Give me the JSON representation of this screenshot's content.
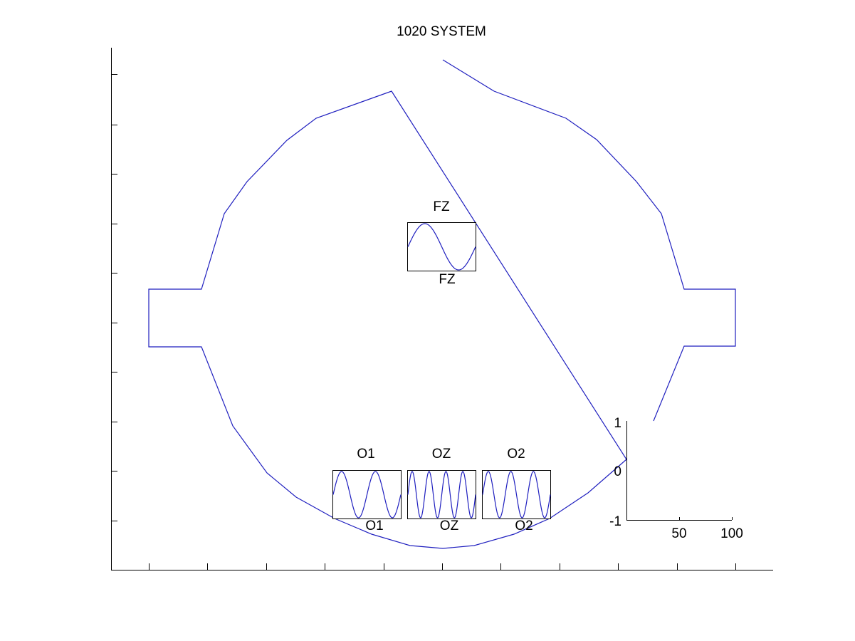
{
  "figure": {
    "title": "1020 SYSTEM",
    "outline_color": "#1f1fbf",
    "axis_color": "#000000",
    "background": "#ffffff"
  },
  "channels": [
    {
      "id": "fz",
      "label_top": "FZ",
      "label_bottom": "FZ",
      "cycles": 1
    },
    {
      "id": "o1",
      "label_top": "O1",
      "label_bottom": "O1",
      "cycles": 2
    },
    {
      "id": "oz",
      "label_top": "OZ",
      "label_bottom": "OZ",
      "cycles": 4
    },
    {
      "id": "o2",
      "label_top": "O2",
      "label_bottom": "O2",
      "cycles": 3
    }
  ],
  "scale_axes": {
    "y_tick_labels": [
      "1",
      "0",
      "-1"
    ],
    "x_tick_labels": [
      "50",
      "100"
    ]
  }
}
